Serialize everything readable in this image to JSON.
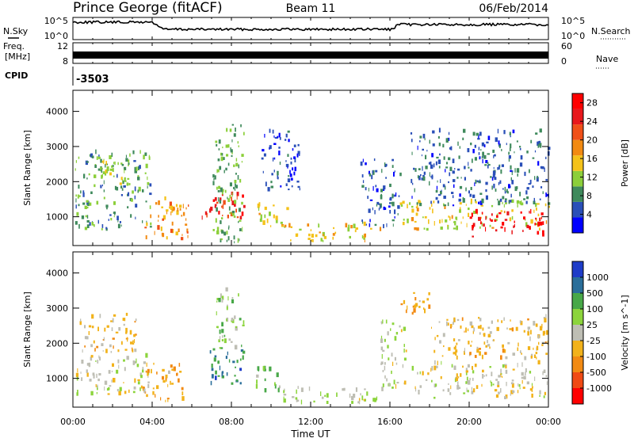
{
  "header": {
    "station": "Prince George (fitACF)",
    "beam": "Beam 11",
    "date": "06/Feb/2014"
  },
  "strips": {
    "nsky_label": "N.Sky",
    "nsearch_label": "N.Search",
    "noise_top_left": "10^5",
    "noise_bottom_left": "10^0",
    "noise_top_right": "10^5",
    "noise_bottom_right": "10^0",
    "freq_label_1": "Freq.",
    "freq_label_2": "[MHz]",
    "freq_top": "12",
    "freq_bottom": "8",
    "nave_label": "Nave",
    "nave_top": "60",
    "nave_bottom": "0",
    "cpid_label": "CPID",
    "cpid_value": "-3503"
  },
  "colors": {
    "power": [
      "#0000ff",
      "#2a4fb8",
      "#3f8a5c",
      "#8ccf3a",
      "#f4c21a",
      "#f28a12",
      "#f05018",
      "#e8181c",
      "#ff0000"
    ],
    "velocity": [
      "#ff0000",
      "#f04a14",
      "#f28a12",
      "#f2b21a",
      "#bebeb4",
      "#8cd43c",
      "#48a848",
      "#2a6e9a",
      "#1e3cc8"
    ]
  },
  "chart_data": [
    {
      "type": "heatmap",
      "title": "",
      "xlabel": "Time UT",
      "ylabel": "Slant Range [km]",
      "x_ticks": [
        "00:00",
        "04:00",
        "08:00",
        "12:00",
        "16:00",
        "20:00",
        "00:00"
      ],
      "y_ticks": [
        "1000",
        "2000",
        "3000",
        "4000"
      ],
      "xlim_hours": [
        0,
        24
      ],
      "ylim_km": [
        180,
        4600
      ],
      "colorbar": {
        "label": "Power [dB]",
        "ticks": [
          "4",
          "8",
          "12",
          "16",
          "20",
          "24",
          "28"
        ],
        "range": [
          0,
          30
        ]
      },
      "regions": [
        {
          "t0": 0.1,
          "t1": 3.9,
          "r0": 600,
          "r1": 2800,
          "value": 9
        },
        {
          "t0": 1.2,
          "t1": 2.8,
          "r0": 1900,
          "r1": 2700,
          "value": 13
        },
        {
          "t0": 3.6,
          "t1": 5.8,
          "r0": 250,
          "r1": 1500,
          "value": 18
        },
        {
          "t0": 6.5,
          "t1": 8.6,
          "r0": 900,
          "r1": 1700,
          "value": 24
        },
        {
          "t0": 7.0,
          "t1": 8.6,
          "r0": 200,
          "r1": 3600,
          "value": 10
        },
        {
          "t0": 9.0,
          "t1": 10.8,
          "r0": 700,
          "r1": 1300,
          "value": 14
        },
        {
          "t0": 9.5,
          "t1": 11.5,
          "r0": 1700,
          "r1": 3400,
          "value": 4
        },
        {
          "t0": 10.5,
          "t1": 15.5,
          "r0": 250,
          "r1": 750,
          "value": 15
        },
        {
          "t0": 14.5,
          "t1": 16.5,
          "r0": 600,
          "r1": 2600,
          "value": 5
        },
        {
          "t0": 16.5,
          "t1": 24.0,
          "r0": 600,
          "r1": 1400,
          "value": 14
        },
        {
          "t0": 17.0,
          "t1": 24.0,
          "r0": 1300,
          "r1": 3400,
          "value": 6
        },
        {
          "t0": 20.0,
          "t1": 24.0,
          "r0": 400,
          "r1": 1100,
          "value": 28
        }
      ]
    },
    {
      "type": "heatmap",
      "title": "",
      "xlabel": "Time UT",
      "ylabel": "Slant Range [km]",
      "x_ticks": [
        "00:00",
        "04:00",
        "08:00",
        "12:00",
        "16:00",
        "20:00",
        "00:00"
      ],
      "y_ticks": [
        "1000",
        "2000",
        "3000",
        "4000"
      ],
      "xlim_hours": [
        0,
        24
      ],
      "ylim_km": [
        180,
        4600
      ],
      "colorbar": {
        "label": "Velocity [m s^-1]",
        "ticks": [
          "1000",
          "500",
          "100",
          "25",
          "-25",
          "-100",
          "-500",
          "-1000"
        ],
        "range": [
          -1000,
          1000
        ]
      },
      "regions": [
        {
          "t0": 0.1,
          "t1": 3.8,
          "r0": 500,
          "r1": 1600,
          "value": 0
        },
        {
          "t0": 0.3,
          "t1": 3.2,
          "r0": 1700,
          "r1": 2800,
          "value": -200
        },
        {
          "t0": 3.5,
          "t1": 5.5,
          "r0": 300,
          "r1": 1400,
          "value": -300
        },
        {
          "t0": 6.8,
          "t1": 8.6,
          "r0": 800,
          "r1": 1800,
          "value": 600
        },
        {
          "t0": 7.2,
          "t1": 8.6,
          "r0": 1800,
          "r1": 3500,
          "value": 200
        },
        {
          "t0": 9.2,
          "t1": 10.5,
          "r0": 600,
          "r1": 1300,
          "value": 300
        },
        {
          "t0": 10.5,
          "t1": 15.5,
          "r0": 250,
          "r1": 700,
          "value": 80
        },
        {
          "t0": 15.5,
          "t1": 16.8,
          "r0": 600,
          "r1": 2600,
          "value": 60
        },
        {
          "t0": 16.5,
          "t1": 18.0,
          "r0": 2800,
          "r1": 3500,
          "value": -300
        },
        {
          "t0": 17.0,
          "t1": 24.0,
          "r0": 400,
          "r1": 1400,
          "value": 0
        },
        {
          "t0": 18.0,
          "t1": 24.0,
          "r0": 1500,
          "r1": 2700,
          "value": -150
        }
      ]
    }
  ]
}
